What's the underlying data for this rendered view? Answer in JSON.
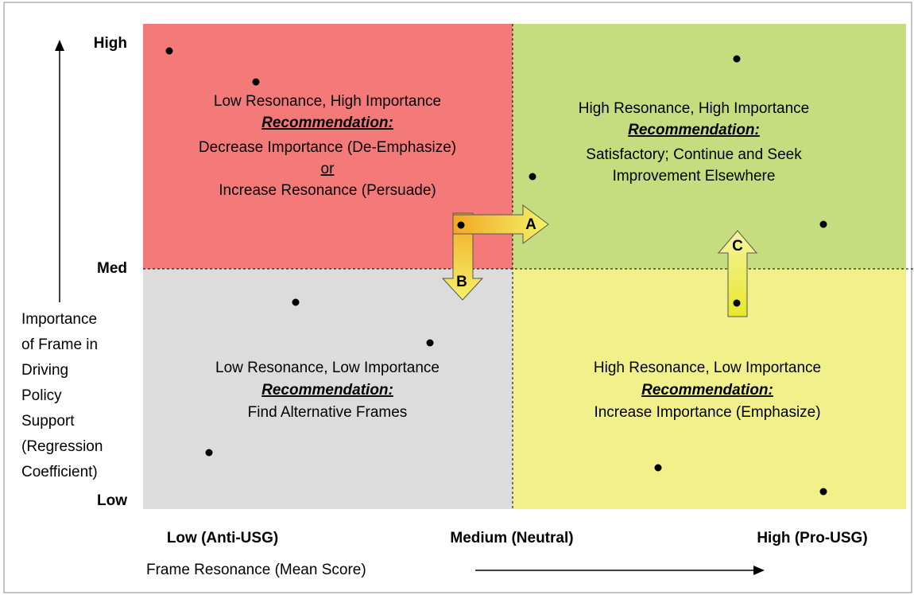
{
  "y_axis": {
    "ticks": [
      "High",
      "Med",
      "Low"
    ],
    "title_lines": [
      "Importance",
      "of Frame in",
      "Driving",
      "Policy",
      "Support",
      "(Regression",
      "Coefficient)"
    ]
  },
  "x_axis": {
    "ticks": [
      "Low (Anti-USG)",
      "Medium (Neutral)",
      "High (Pro-USG)"
    ],
    "title": "Frame Resonance (Mean Score)"
  },
  "quadrants": [
    {
      "heading": "Low Resonance, High Importance",
      "recommendation": "Recommendation:",
      "lines": [
        "Decrease Importance (De-Emphasize)",
        "or",
        "Increase Resonance (Persuade)"
      ]
    },
    {
      "heading": "High Resonance, High Importance",
      "recommendation": "Recommendation:",
      "lines": [
        "Satisfactory; Continue and Seek",
        "Improvement Elsewhere"
      ]
    },
    {
      "heading": "Low Resonance, Low Importance",
      "recommendation": "Recommendation:",
      "lines": [
        "Find Alternative Frames"
      ]
    },
    {
      "heading": "High Resonance, Low Importance",
      "recommendation": "Recommendation:",
      "lines": [
        "Increase Importance (Emphasize)"
      ]
    }
  ],
  "arrows": [
    {
      "label": "A"
    },
    {
      "label": "B"
    },
    {
      "label": "C"
    }
  ]
}
